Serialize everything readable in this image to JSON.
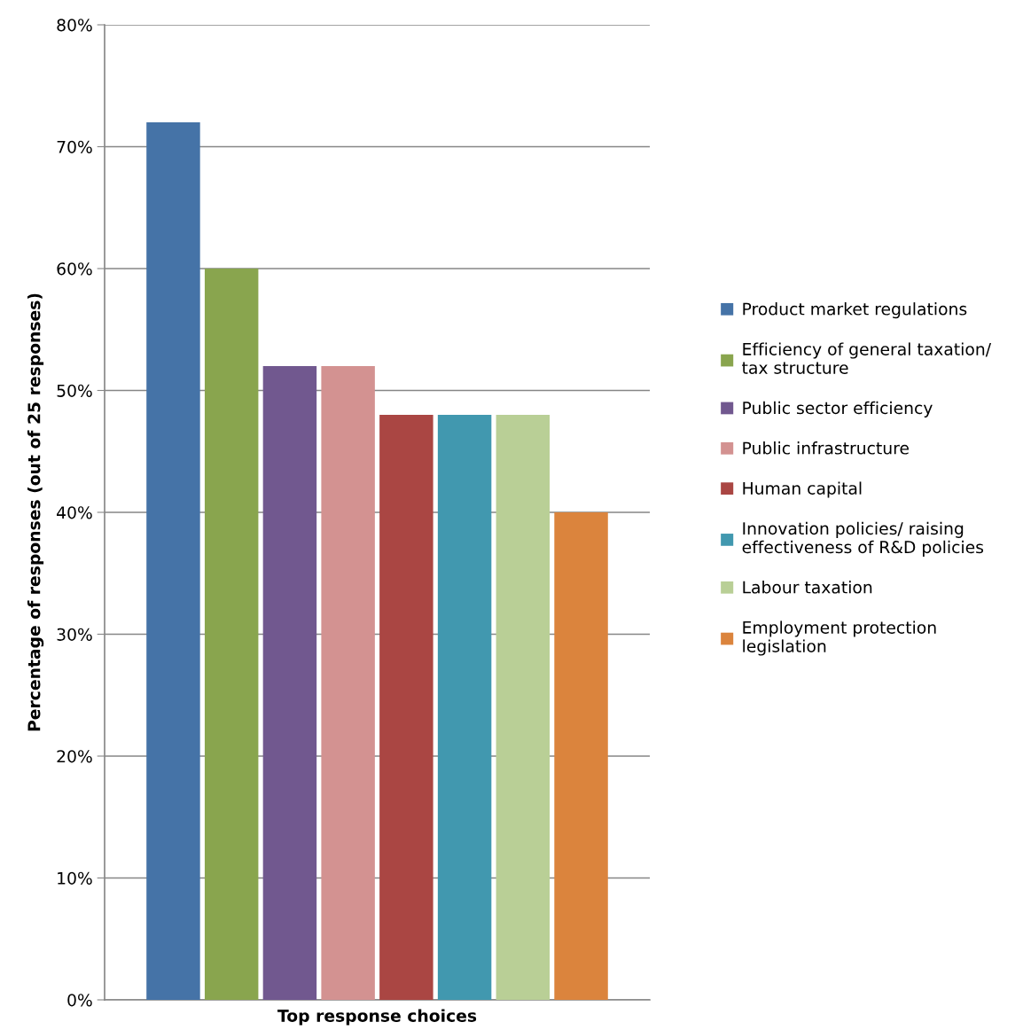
{
  "chart_data": {
    "type": "bar",
    "xlabel": "Top response choices",
    "ylabel": "Percentage of responses (out of 25 responses)",
    "categories": [
      null
    ],
    "series": [
      {
        "name": "Product market regulations",
        "color": "#4573a7",
        "values": [
          72
        ]
      },
      {
        "name": "Efficiency of general taxation/\ntax structure",
        "color": "#89a54e",
        "values": [
          60
        ]
      },
      {
        "name": "Public sector efficiency",
        "color": "#71588f",
        "values": [
          52
        ]
      },
      {
        "name": "Public infrastructure",
        "color": "#d39291",
        "values": [
          52
        ]
      },
      {
        "name": "Human capital",
        "color": "#aa4643",
        "values": [
          48
        ]
      },
      {
        "name": "Innovation policies/ raising\neffectiveness of R&D policies",
        "color": "#4198af",
        "values": [
          48
        ]
      },
      {
        "name": "Labour taxation",
        "color": "#b9cf96",
        "values": [
          48
        ]
      },
      {
        "name": "Employment protection\nlegislation",
        "color": "#db843d",
        "values": [
          40
        ]
      }
    ],
    "ylim": [
      0,
      80
    ],
    "yticks": [
      {
        "value": 0,
        "label": "0%"
      },
      {
        "value": 10,
        "label": "10%"
      },
      {
        "value": 20,
        "label": "20%"
      },
      {
        "value": 30,
        "label": "30%"
      },
      {
        "value": 40,
        "label": "40%"
      },
      {
        "value": 50,
        "label": "50%"
      },
      {
        "value": 60,
        "label": "60%"
      },
      {
        "value": 70,
        "label": "70%"
      },
      {
        "value": 80,
        "label": "80%"
      }
    ],
    "grid": "y",
    "legend": "right"
  }
}
